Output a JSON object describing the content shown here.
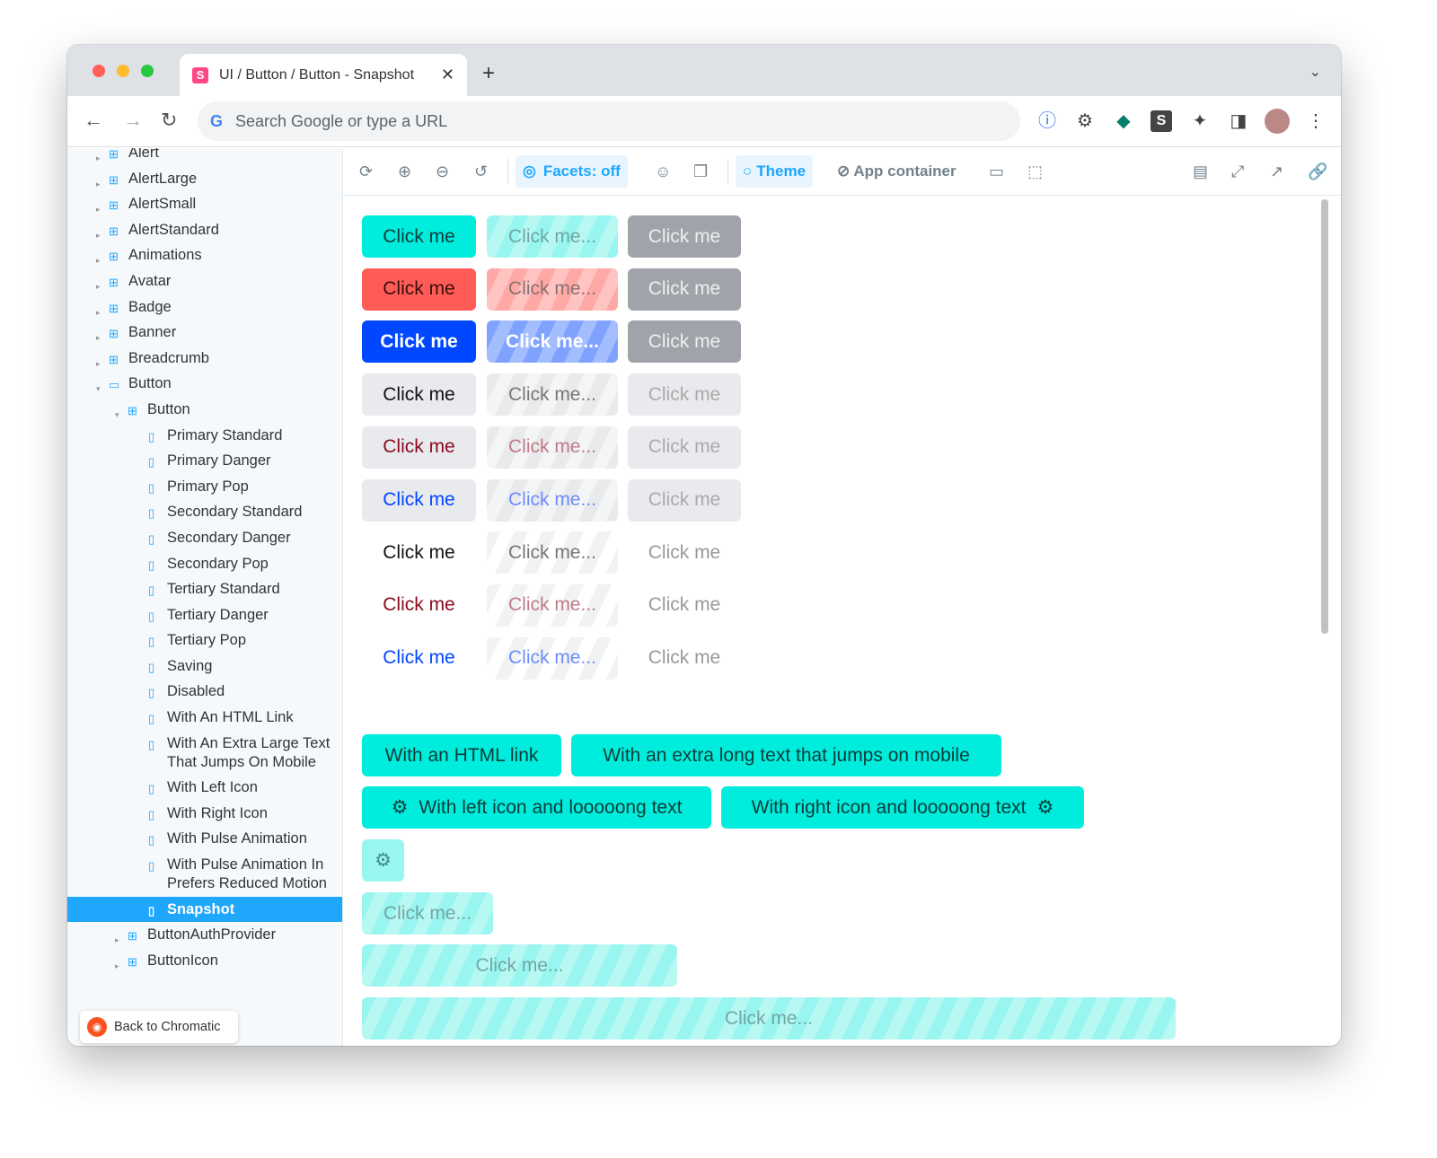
{
  "browser": {
    "tab_title": "UI / Button / Button - Snapshot",
    "address_placeholder": "Search Google or type a URL"
  },
  "sidebar": {
    "items": [
      {
        "label": "Alert",
        "level": 1,
        "kind": "component"
      },
      {
        "label": "AlertLarge",
        "level": 1,
        "kind": "component"
      },
      {
        "label": "AlertSmall",
        "level": 1,
        "kind": "component"
      },
      {
        "label": "AlertStandard",
        "level": 1,
        "kind": "component"
      },
      {
        "label": "Animations",
        "level": 1,
        "kind": "component"
      },
      {
        "label": "Avatar",
        "level": 1,
        "kind": "component"
      },
      {
        "label": "Badge",
        "level": 1,
        "kind": "component"
      },
      {
        "label": "Banner",
        "level": 1,
        "kind": "component"
      },
      {
        "label": "Breadcrumb",
        "level": 1,
        "kind": "component"
      },
      {
        "label": "Button",
        "level": 1,
        "kind": "folder",
        "expanded": true
      },
      {
        "label": "Button",
        "level": 2,
        "kind": "component",
        "expanded": true
      },
      {
        "label": "Primary Standard",
        "level": 3,
        "kind": "story"
      },
      {
        "label": "Primary Danger",
        "level": 3,
        "kind": "story"
      },
      {
        "label": "Primary Pop",
        "level": 3,
        "kind": "story"
      },
      {
        "label": "Secondary Standard",
        "level": 3,
        "kind": "story"
      },
      {
        "label": "Secondary Danger",
        "level": 3,
        "kind": "story"
      },
      {
        "label": "Secondary Pop",
        "level": 3,
        "kind": "story"
      },
      {
        "label": "Tertiary Standard",
        "level": 3,
        "kind": "story"
      },
      {
        "label": "Tertiary Danger",
        "level": 3,
        "kind": "story"
      },
      {
        "label": "Tertiary Pop",
        "level": 3,
        "kind": "story"
      },
      {
        "label": "Saving",
        "level": 3,
        "kind": "story"
      },
      {
        "label": "Disabled",
        "level": 3,
        "kind": "story"
      },
      {
        "label": "With An HTML Link",
        "level": 3,
        "kind": "story"
      },
      {
        "label": "With An Extra Large Text That Jumps On Mobile",
        "level": 3,
        "kind": "story",
        "lines": 3
      },
      {
        "label": "With Left Icon",
        "level": 3,
        "kind": "story"
      },
      {
        "label": "With Right Icon",
        "level": 3,
        "kind": "story"
      },
      {
        "label": "With Pulse Animation",
        "level": 3,
        "kind": "story"
      },
      {
        "label": "With Pulse Animation In Prefers Reduced Motion",
        "level": 3,
        "kind": "story",
        "lines": 3
      },
      {
        "label": "Snapshot",
        "level": 3,
        "kind": "story",
        "selected": true
      },
      {
        "label": "ButtonAuthProvider",
        "level": 2,
        "kind": "component"
      },
      {
        "label": "ButtonIcon",
        "level": 2,
        "kind": "component"
      }
    ],
    "back_label": "Back to Chromatic"
  },
  "toolbar": {
    "facets": "Facets: off",
    "theme": "Theme",
    "app_container": "App container"
  },
  "colors": {
    "primary": "#00ecdc",
    "danger": "#ff5c57",
    "pop": "#0047ff",
    "disabled": "#a0a4aa",
    "secondary": "#e8eaed",
    "accent": "#1ea7fd"
  },
  "grid": {
    "rows": [
      {
        "variant": "primary-standard",
        "cells": [
          "Click me",
          "Click me...",
          "Click me"
        ]
      },
      {
        "variant": "primary-danger",
        "cells": [
          "Click me",
          "Click me...",
          "Click me"
        ]
      },
      {
        "variant": "primary-pop",
        "cells": [
          "Click me",
          "Click me...",
          "Click me"
        ]
      },
      {
        "variant": "secondary-standard",
        "cells": [
          "Click me",
          "Click me...",
          "Click me"
        ]
      },
      {
        "variant": "secondary-danger",
        "cells": [
          "Click me",
          "Click me...",
          "Click me"
        ]
      },
      {
        "variant": "secondary-pop",
        "cells": [
          "Click me",
          "Click me...",
          "Click me"
        ]
      },
      {
        "variant": "tertiary-standard",
        "cells": [
          "Click me",
          "Click me...",
          "Click me"
        ]
      },
      {
        "variant": "tertiary-danger",
        "cells": [
          "Click me",
          "Click me...",
          "Click me"
        ]
      },
      {
        "variant": "tertiary-pop",
        "cells": [
          "Click me",
          "Click me...",
          "Click me"
        ]
      }
    ]
  },
  "extra": {
    "html_link": "With an HTML link",
    "long_text": "With an extra long text that jumps on mobile",
    "left_icon": "With left icon and looooong text",
    "right_icon": "With right icon and looooong text",
    "saving1": "Click me...",
    "saving2": "Click me...",
    "saving3": "Click me..."
  }
}
